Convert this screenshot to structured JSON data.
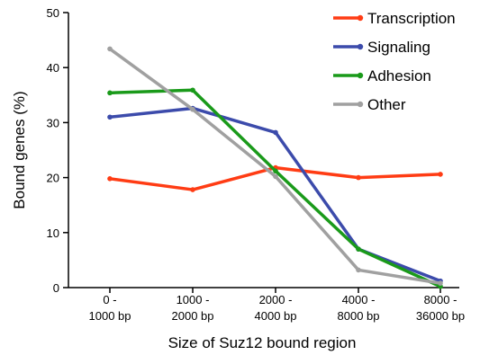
{
  "chart_data": {
    "type": "line",
    "categories": [
      [
        "0 -",
        "1000 bp"
      ],
      [
        "1000 -",
        "2000 bp"
      ],
      [
        "2000 -",
        "4000 bp"
      ],
      [
        "4000 -",
        "8000 bp"
      ],
      [
        "8000 -",
        "36000 bp"
      ]
    ],
    "series": [
      {
        "name": "Transcription",
        "color": "#ff3c14",
        "values": [
          19.8,
          17.8,
          21.8,
          20.0,
          20.6
        ]
      },
      {
        "name": "Signaling",
        "color": "#3c4bab",
        "values": [
          31.0,
          32.6,
          28.2,
          7.0,
          1.2
        ]
      },
      {
        "name": "Adhesion",
        "color": "#1a9a1a",
        "values": [
          35.4,
          35.9,
          21.2,
          7.0,
          0.2
        ]
      },
      {
        "name": "Other",
        "color": "#a0a0a0",
        "values": [
          43.4,
          32.4,
          20.2,
          3.2,
          0.8
        ]
      }
    ],
    "xlabel": "Size of Suz12 bound region",
    "ylabel": "Bound genes (%)",
    "ylim": [
      0,
      50
    ],
    "yticks": [
      0,
      10,
      20,
      30,
      40,
      50
    ],
    "grid": false,
    "legend_position": "top-right"
  }
}
